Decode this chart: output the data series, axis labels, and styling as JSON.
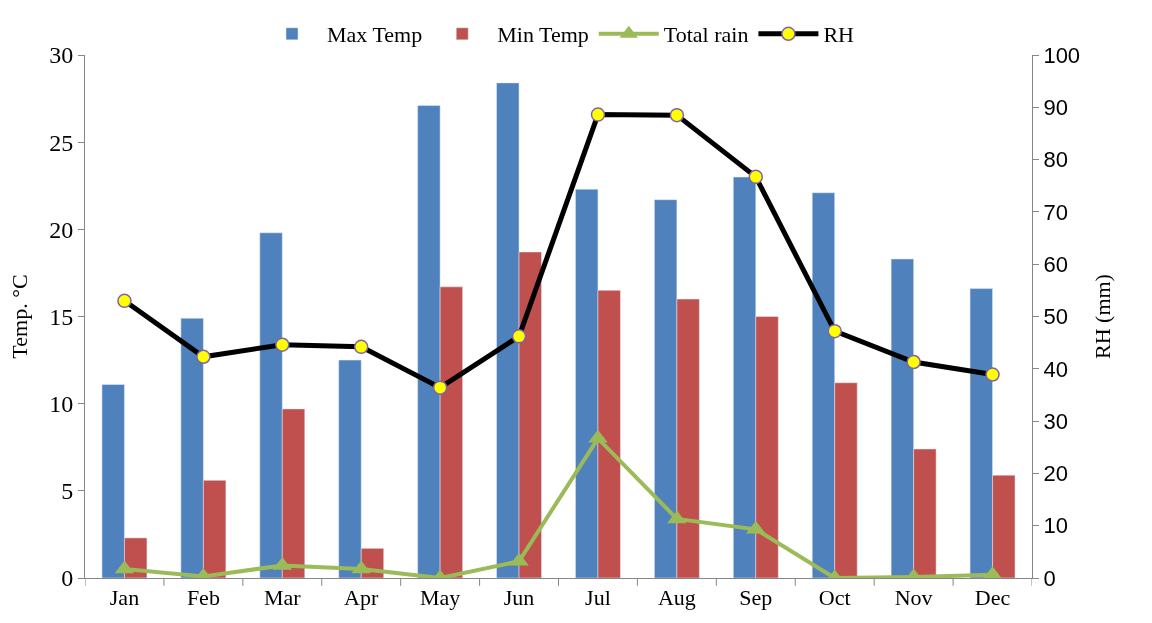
{
  "chart_data": {
    "type": "bar",
    "ylabel": "Temp. °C",
    "y2label": "RH (mm)",
    "categories": [
      "Jan",
      "Feb",
      "Mar",
      "Apr",
      "May",
      "Jun",
      "Jul",
      "Aug",
      "Sep",
      "Oct",
      "Nov",
      "Dec"
    ],
    "series": [
      {
        "name": "Max Temp",
        "color": "#4f81bd",
        "values": [
          11.1,
          14.9,
          19.8,
          12.5,
          27.1,
          28.4,
          22.3,
          21.7,
          23.0,
          22.1,
          18.3,
          16.6
        ]
      },
      {
        "name": "Min Temp",
        "color": "#c0504d",
        "values": [
          2.3,
          5.6,
          9.7,
          1.7,
          16.7,
          18.7,
          16.5,
          16.0,
          15.0,
          11.2,
          7.4,
          5.9
        ]
      },
      {
        "name": "Total rain",
        "type": "line",
        "axis": "y2",
        "marker": "triangle",
        "color": "#9bbb59",
        "values": [
          1.7,
          0.3,
          2.4,
          1.7,
          0,
          3.2,
          26.7,
          11.3,
          9.3,
          0,
          0.2,
          0.6
        ]
      },
      {
        "name": "RH",
        "type": "line",
        "axis": "y2",
        "marker": "circle",
        "color": "#000000",
        "values": [
          53.0,
          42.3,
          44.6,
          44.2,
          36.4,
          46.2,
          88.6,
          88.5,
          76.7,
          47.2,
          41.3,
          38.9
        ]
      }
    ],
    "ylim": [
      0,
      30
    ],
    "yticks": [
      0,
      5,
      10,
      15,
      20,
      25,
      30
    ],
    "y2lim": [
      0,
      100
    ],
    "y2ticks": [
      0,
      10,
      20,
      30,
      40,
      50,
      60,
      70,
      80,
      90,
      100
    ],
    "legend": "top"
  }
}
